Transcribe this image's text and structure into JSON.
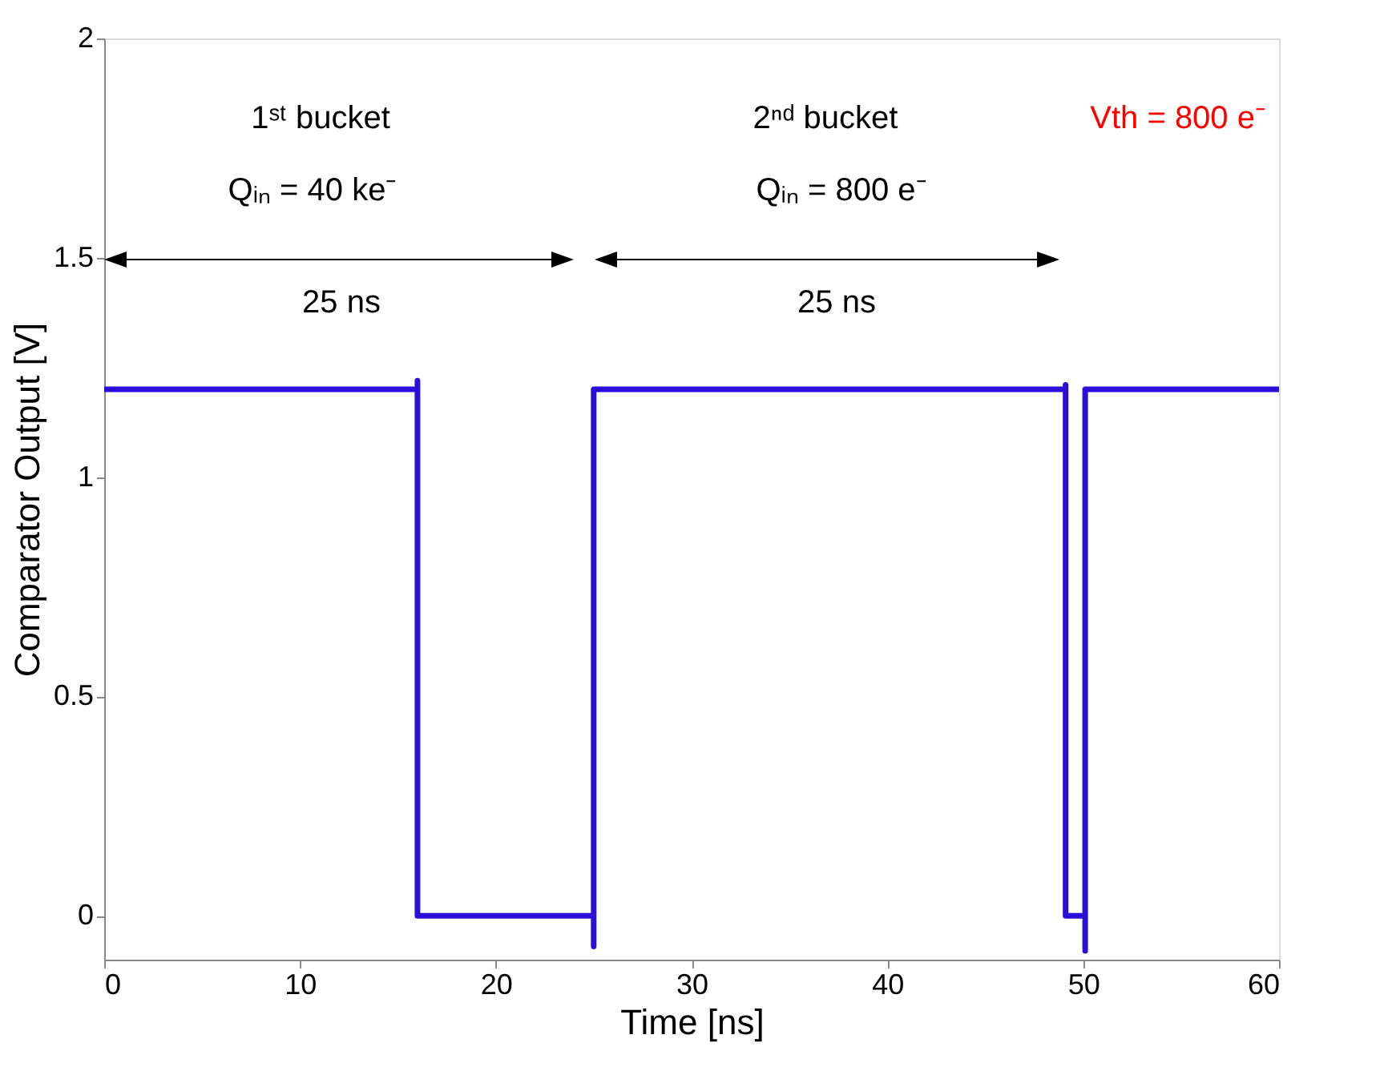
{
  "chart_data": {
    "type": "line",
    "xlabel": "Time [ns]",
    "ylabel": "Comparator Output [V]",
    "xlim": [
      0,
      60
    ],
    "xticks": [
      0,
      10,
      20,
      30,
      40,
      50,
      60
    ],
    "ylim": [
      -0.1,
      2
    ],
    "yticks": [
      0,
      0.5,
      1,
      1.5,
      2
    ],
    "line_style": "solid",
    "marker": "none",
    "series": [
      {
        "color": "#2b0fd9",
        "x": [
          0,
          16,
          16,
          16,
          25,
          25,
          25,
          49.1,
          49.1,
          49.1,
          50.1,
          50.1,
          50.1,
          60
        ],
        "values": [
          1.2,
          1.2,
          1.22,
          0,
          0,
          -0.07,
          1.2,
          1.2,
          1.21,
          0,
          0,
          -0.08,
          1.2,
          1.2
        ]
      }
    ],
    "annotations": [
      "1ˢᵗ bucket",
      "Qᵢₙ =  40 ke⁻",
      "25 ns",
      "2ⁿᵈ bucket",
      "Qᵢₙ =  800 e⁻",
      "25 ns",
      "Vth = 800 e⁻"
    ]
  }
}
